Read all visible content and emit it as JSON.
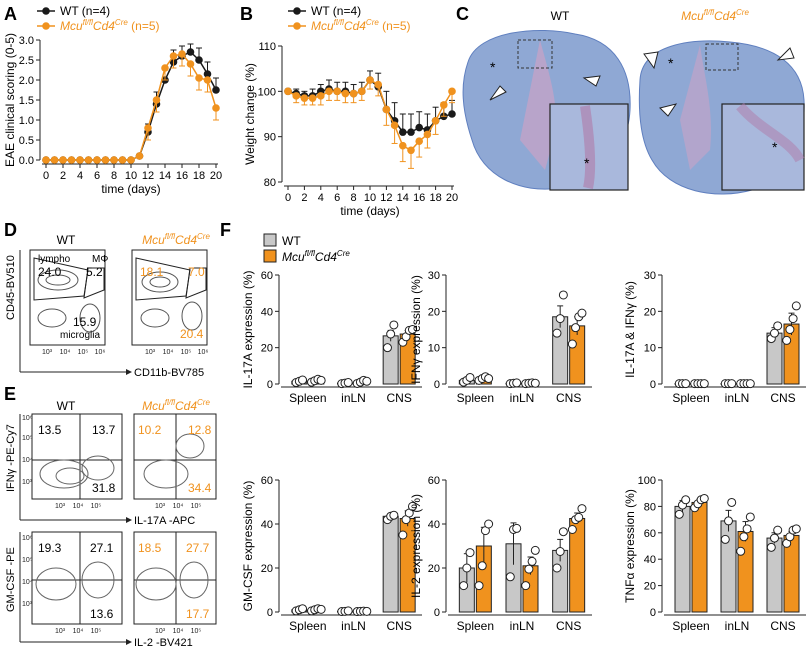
{
  "colors": {
    "wt": "#1a1a1a",
    "ko": "#f0921e",
    "wt_bar": "#c8c8c8",
    "ko_bar": "#f0921e",
    "tissue": "#8fa8d4",
    "tissue_dark": "#5f7fbf"
  },
  "panel_letters": [
    "A",
    "B",
    "C",
    "D",
    "E",
    "F"
  ],
  "legend": {
    "wt_n": "WT (n=4)",
    "ko_n_prefix": "Mcu",
    "ko_n_sup": "fl/fl",
    "ko_n_mid": "Cd4",
    "ko_n_sup2": "Cre",
    "ko_n_suffix": " (n=5)",
    "wt": "WT"
  },
  "panel_c": {
    "wt_label": "WT",
    "ko_prefix": "Mcu",
    "ko_sup": "fl/fl",
    "ko_mid": "Cd4",
    "ko_sup2": "Cre",
    "asterisk": "*"
  },
  "panel_d": {
    "wt_label": "WT",
    "ko_prefix": "Mcu",
    "ko_sup": "fl/fl",
    "ko_mid": "Cd4",
    "ko_sup2": "Cre",
    "ylabel": "CD45-BV510",
    "xlabel": "CD11b-BV785",
    "gate_lympho": "lympho",
    "gate_mphi": "MΦ",
    "gate_microglia": "microglia",
    "wt_values": [
      "24.0",
      "5.2",
      "15.9"
    ],
    "ko_values": [
      "18.1",
      "7.0",
      "20.4"
    ],
    "ticks": [
      "10³",
      "10⁴",
      "10⁵",
      "10⁶"
    ]
  },
  "panel_e": {
    "wt_label": "WT",
    "ko_prefix": "Mcu",
    "ko_sup": "fl/fl",
    "ko_mid": "Cd4",
    "ko_sup2": "Cre",
    "top": {
      "ylabel": "IFNγ -PE-Cy7",
      "xlabel": "IL-17A -APC",
      "wt_values": [
        "13.5",
        "13.7",
        "31.8"
      ],
      "ko_values": [
        "10.2",
        "12.8",
        "34.4"
      ],
      "yticks": [
        "10⁶",
        "10⁵",
        "10⁴",
        "10³"
      ],
      "xticks": [
        "10³",
        "10⁴",
        "10⁵"
      ]
    },
    "bottom": {
      "ylabel": "GM-CSF -PE",
      "xlabel": "IL-2 -BV421",
      "wt_values": [
        "19.3",
        "27.1",
        "13.6"
      ],
      "ko_values": [
        "18.5",
        "27.7",
        "17.7"
      ],
      "yticks": [
        "10⁶",
        "10⁵",
        "10⁴",
        "10³"
      ],
      "xticks": [
        "10³",
        "10⁴",
        "10⁵"
      ]
    }
  },
  "chart_data": [
    {
      "id": "A",
      "type": "line",
      "title": "",
      "xlabel": "time (days)",
      "ylabel": "EAE clinical scoring (0-5)",
      "xlim": [
        0,
        20
      ],
      "ylim": [
        0,
        3.0
      ],
      "xticks": [
        0,
        2,
        4,
        6,
        8,
        10,
        12,
        14,
        16,
        18,
        20
      ],
      "yticks": [
        0.0,
        0.5,
        1.0,
        1.5,
        2.0,
        2.5,
        3.0
      ],
      "ytick_labels": [
        "0.0",
        "0.5",
        "1.0",
        "1.5",
        "2.0",
        "2.5",
        "3.0"
      ],
      "x": [
        0,
        1,
        2,
        3,
        4,
        5,
        6,
        7,
        8,
        9,
        10,
        11,
        12,
        13,
        14,
        15,
        16,
        17,
        18,
        19,
        20
      ],
      "series": [
        {
          "name": "WT (n=4)",
          "color": "#1a1a1a",
          "values": [
            0,
            0,
            0,
            0,
            0,
            0,
            0,
            0,
            0,
            0,
            0,
            0.1,
            0.7,
            1.4,
            2.0,
            2.45,
            2.6,
            2.7,
            2.5,
            2.15,
            1.75
          ],
          "errors": [
            0,
            0,
            0,
            0,
            0,
            0,
            0,
            0,
            0,
            0,
            0,
            0.05,
            0.2,
            0.3,
            0.3,
            0.3,
            0.25,
            0.2,
            0.3,
            0.3,
            0.3
          ]
        },
        {
          "name": "Mcu fl/fl Cd4 Cre (n=5)",
          "color": "#f0921e",
          "values": [
            0,
            0,
            0,
            0,
            0,
            0,
            0,
            0,
            0,
            0,
            0,
            0.1,
            0.8,
            1.5,
            2.3,
            2.6,
            2.65,
            2.4,
            2.05,
            2.0,
            1.3
          ],
          "errors": [
            0,
            0,
            0,
            0,
            0,
            0,
            0,
            0,
            0,
            0,
            0,
            0.05,
            0.3,
            0.3,
            0.3,
            0.3,
            0.3,
            0.3,
            0.3,
            0.3,
            0.3
          ]
        }
      ]
    },
    {
      "id": "B",
      "type": "line",
      "title": "",
      "xlabel": "time (days)",
      "ylabel": "Weight change (%)",
      "xlim": [
        0,
        20
      ],
      "ylim": [
        80,
        110
      ],
      "xticks": [
        0,
        2,
        4,
        6,
        8,
        10,
        12,
        14,
        16,
        18,
        20
      ],
      "yticks": [
        80,
        90,
        100,
        110
      ],
      "ytick_labels": [
        "80",
        "90",
        "100",
        "110"
      ],
      "x": [
        0,
        1,
        2,
        3,
        4,
        5,
        6,
        7,
        8,
        9,
        10,
        11,
        12,
        13,
        14,
        15,
        16,
        17,
        18,
        19,
        20
      ],
      "series": [
        {
          "name": "WT (n=4)",
          "color": "#1a1a1a",
          "values": [
            100,
            99.5,
            99,
            99,
            100,
            100.5,
            100,
            100,
            99.5,
            100,
            102.5,
            101,
            96,
            93.5,
            91,
            91,
            92,
            91.5,
            93.5,
            94.5,
            95
          ],
          "errors": [
            0.5,
            1,
            1,
            1.5,
            1.5,
            2,
            2,
            2,
            2,
            2,
            2,
            3,
            4,
            4,
            4,
            4,
            3.5,
            3.5,
            3,
            3,
            3
          ]
        },
        {
          "name": "Mcu fl/fl Cd4 Cre (n=5)",
          "color": "#f0921e",
          "values": [
            100,
            99,
            98.5,
            98.5,
            99,
            100,
            100,
            99.5,
            99.5,
            100,
            102.5,
            101.5,
            96,
            92.5,
            88,
            87,
            89,
            90.5,
            93.5,
            97,
            100
          ],
          "errors": [
            0.5,
            1.5,
            1.5,
            1.5,
            2,
            2,
            2,
            2,
            2,
            2,
            2,
            2.5,
            3.5,
            4,
            3.5,
            4,
            3.5,
            3,
            3,
            2.5,
            2.5
          ]
        }
      ]
    },
    {
      "id": "F1",
      "type": "bar",
      "ylabel": "IL-17A expression (%)",
      "categories": [
        "Spleen",
        "inLN",
        "CNS"
      ],
      "ylim": [
        0,
        60
      ],
      "yticks": [
        0,
        20,
        40,
        60
      ],
      "series": [
        {
          "name": "WT",
          "values": [
            1.5,
            0.5,
            26.5
          ],
          "errors": [
            0.6,
            0.3,
            3.0
          ],
          "points": [
            [
              0.8,
              1.5,
              2.2
            ],
            [
              0.2,
              0.5,
              0.8
            ],
            [
              20.0,
              27.5,
              32.5
            ]
          ]
        },
        {
          "name": "Mcu fl/fl Cd4 Cre",
          "values": [
            1.8,
            1.2,
            27.5
          ],
          "errors": [
            0.7,
            0.6,
            2.0
          ],
          "points": [
            [
              1.0,
              1.8,
              2.6,
              2.0
            ],
            [
              0.3,
              1.0,
              2.0,
              1.5
            ],
            [
              23.0,
              26.0,
              29.5,
              30.0
            ]
          ]
        }
      ]
    },
    {
      "id": "F2",
      "type": "bar",
      "ylabel": "IFNγ expression (%)",
      "categories": [
        "Spleen",
        "inLN",
        "CNS"
      ],
      "ylim": [
        0,
        30
      ],
      "yticks": [
        0,
        10,
        20,
        30
      ],
      "series": [
        {
          "name": "WT",
          "values": [
            1.0,
            0.2,
            18.5
          ],
          "errors": [
            0.5,
            0.1,
            3.0
          ],
          "points": [
            [
              0.5,
              1.0,
              1.8
            ],
            [
              0.1,
              0.2,
              0.3
            ],
            [
              14.0,
              18.0,
              24.5
            ]
          ]
        },
        {
          "name": "Mcu fl/fl Cd4 Cre",
          "values": [
            1.5,
            0.2,
            16.0
          ],
          "errors": [
            0.5,
            0.1,
            2.5
          ],
          "points": [
            [
              1.0,
              1.5,
              2.0,
              1.5
            ],
            [
              0.1,
              0.2,
              0.3,
              0.2
            ],
            [
              11.0,
              15.5,
              18.5,
              19.5
            ]
          ]
        }
      ]
    },
    {
      "id": "F3",
      "type": "bar",
      "ylabel": "IL-17A & IFNγ  (%)",
      "categories": [
        "Spleen",
        "inLN",
        "CNS"
      ],
      "ylim": [
        0,
        30
      ],
      "yticks": [
        0,
        10,
        20,
        30
      ],
      "series": [
        {
          "name": "WT",
          "values": [
            0.1,
            0.1,
            14.0
          ],
          "errors": [
            0.05,
            0.05,
            1.5
          ],
          "points": [
            [
              0.1,
              0.1,
              0.1
            ],
            [
              0.1,
              0.1,
              0.1
            ],
            [
              12.5,
              14.0,
              16.0
            ]
          ]
        },
        {
          "name": "Mcu fl/fl Cd4 Cre",
          "values": [
            0.1,
            0.1,
            16.5
          ],
          "errors": [
            0.05,
            0.05,
            3.0
          ],
          "points": [
            [
              0.1,
              0.1,
              0.1,
              0.1
            ],
            [
              0.1,
              0.1,
              0.1,
              0.1
            ],
            [
              12.0,
              15.0,
              18.0,
              21.5
            ]
          ]
        }
      ]
    },
    {
      "id": "F4",
      "type": "bar",
      "ylabel": "GM-CSF expression (%)",
      "categories": [
        "Spleen",
        "inLN",
        "CNS"
      ],
      "ylim": [
        0,
        60
      ],
      "yticks": [
        0,
        20,
        40,
        60
      ],
      "series": [
        {
          "name": "WT",
          "values": [
            1.0,
            0.3,
            43.5
          ],
          "errors": [
            0.4,
            0.2,
            1.0
          ],
          "points": [
            [
              0.5,
              1.0,
              1.5
            ],
            [
              0.2,
              0.3,
              0.5
            ],
            [
              42.0,
              43.5,
              44.0
            ]
          ]
        },
        {
          "name": "Mcu fl/fl Cd4 Cre",
          "values": [
            1.0,
            0.3,
            42.5
          ],
          "errors": [
            0.5,
            0.2,
            3.5
          ],
          "points": [
            [
              0.5,
              1.0,
              1.5,
              1.2
            ],
            [
              0.2,
              0.3,
              0.4,
              0.3
            ],
            [
              35.0,
              42.0,
              45.0,
              48.0
            ]
          ]
        }
      ]
    },
    {
      "id": "F5",
      "type": "bar",
      "ylabel": "IL-2 expression (%)",
      "categories": [
        "Spleen",
        "inLN",
        "CNS"
      ],
      "ylim": [
        0,
        60
      ],
      "yticks": [
        0,
        20,
        40,
        60
      ],
      "series": [
        {
          "name": "WT",
          "values": [
            20.0,
            31.0,
            28.0
          ],
          "errors": [
            6.5,
            9.5,
            5.0
          ],
          "points": [
            [
              12.0,
              20.0,
              27.0
            ],
            [
              16.0,
              37.5,
              38.0
            ],
            [
              20.0,
              27.5,
              36.5
            ]
          ]
        },
        {
          "name": "Mcu fl/fl Cd4 Cre",
          "values": [
            30.0,
            21.0,
            42.5
          ],
          "errors": [
            8.5,
            4.0,
            2.5
          ],
          "points": [
            [
              12.0,
              21.0,
              37.0,
              40.0
            ],
            [
              12.0,
              19.5,
              23.0,
              28.0
            ],
            [
              37.5,
              42.0,
              43.0,
              47.0
            ]
          ]
        }
      ]
    },
    {
      "id": "F6",
      "type": "bar",
      "ylabel": "TNFα expression (%)",
      "categories": [
        "Spleen",
        "inLN",
        "CNS"
      ],
      "ylim": [
        0,
        100
      ],
      "yticks": [
        0,
        20,
        40,
        60,
        80,
        100
      ],
      "series": [
        {
          "name": "WT",
          "values": [
            80.0,
            69.0,
            56.0
          ],
          "errors": [
            4.5,
            8.0,
            4.0
          ],
          "points": [
            [
              74.0,
              81.0,
              85.0
            ],
            [
              55.0,
              69.0,
              83.0
            ],
            [
              49.0,
              56.0,
              62.0
            ]
          ]
        },
        {
          "name": "Mcu fl/fl Cd4 Cre",
          "values": [
            83.0,
            61.0,
            58.0
          ],
          "errors": [
            2.5,
            7.5,
            3.0
          ],
          "points": [
            [
              79.0,
              82.0,
              85.0,
              86.0
            ],
            [
              46.0,
              57.0,
              63.0,
              72.0
            ],
            [
              52.0,
              57.0,
              62.0,
              63.0
            ]
          ]
        }
      ]
    }
  ]
}
